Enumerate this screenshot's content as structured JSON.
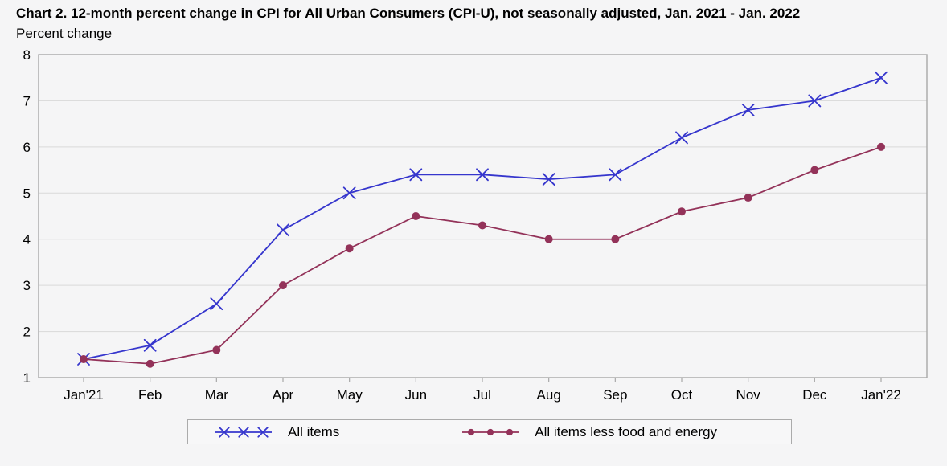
{
  "page": {
    "background_color": "#f5f5f6"
  },
  "chart_data": {
    "type": "line",
    "title": "Chart 2. 12-month percent change in CPI for All Urban Consumers (CPI-U), not seasonally adjusted, Jan. 2021 - Jan. 2022",
    "ylabel": "Percent change",
    "xlabel": "",
    "categories": [
      "Jan'21",
      "Feb",
      "Mar",
      "Apr",
      "May",
      "Jun",
      "Jul",
      "Aug",
      "Sep",
      "Oct",
      "Nov",
      "Dec",
      "Jan'22"
    ],
    "series": [
      {
        "name": "All items",
        "marker": "x",
        "color": "#3636cd",
        "values": [
          1.4,
          1.7,
          2.6,
          4.2,
          5.0,
          5.4,
          5.4,
          5.3,
          5.4,
          6.2,
          6.8,
          7.0,
          7.5
        ]
      },
      {
        "name": "All items less food and energy",
        "marker": "dot",
        "color": "#933259",
        "values": [
          1.4,
          1.3,
          1.6,
          3.0,
          3.8,
          4.5,
          4.3,
          4.0,
          4.0,
          4.6,
          4.9,
          5.5,
          6.0
        ]
      }
    ],
    "ylim": [
      1,
      8
    ],
    "y_ticks": [
      1,
      2,
      3,
      4,
      5,
      6,
      7,
      8
    ],
    "grid": "horizontal",
    "legend_position": "bottom",
    "frame_color": "#a8a8a8",
    "grid_color": "#d9d9d9",
    "tick_label_color": "#000000"
  }
}
